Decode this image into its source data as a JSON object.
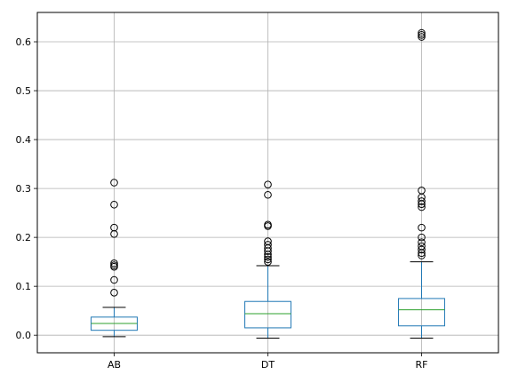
{
  "chart_data": {
    "type": "box",
    "title": "",
    "xlabel": "",
    "ylabel": "",
    "categories": [
      "AB",
      "DT",
      "RF"
    ],
    "ylim": [
      -0.036,
      0.66
    ],
    "yticks": [
      0.0,
      0.1,
      0.2,
      0.3,
      0.4,
      0.5,
      0.6
    ],
    "ytick_labels": [
      "0.0",
      "0.1",
      "0.2",
      "0.3",
      "0.4",
      "0.5",
      "0.6"
    ],
    "grid": true,
    "colors": {
      "box": "#1f77b4",
      "median": "#2ca02c",
      "whisker": "#1f77b4",
      "cap": "#000000",
      "flier": "#000000",
      "grid": "#b0b0b0"
    },
    "boxes": [
      {
        "name": "AB",
        "whisker_low": -0.003,
        "q1": 0.01,
        "median": 0.024,
        "q3": 0.037,
        "whisker_high": 0.057,
        "fliers": [
          0.087,
          0.113,
          0.14,
          0.143,
          0.147,
          0.207,
          0.22,
          0.267,
          0.312
        ]
      },
      {
        "name": "DT",
        "whisker_low": -0.006,
        "q1": 0.015,
        "median": 0.044,
        "q3": 0.069,
        "whisker_high": 0.142,
        "fliers": [
          0.15,
          0.155,
          0.16,
          0.165,
          0.172,
          0.178,
          0.185,
          0.192,
          0.223,
          0.226,
          0.287,
          0.308
        ]
      },
      {
        "name": "RF",
        "whisker_low": -0.006,
        "q1": 0.019,
        "median": 0.052,
        "q3": 0.075,
        "whisker_high": 0.15,
        "fliers": [
          0.163,
          0.168,
          0.175,
          0.182,
          0.19,
          0.2,
          0.22,
          0.262,
          0.268,
          0.274,
          0.282,
          0.296,
          0.61,
          0.614,
          0.618
        ]
      }
    ]
  }
}
